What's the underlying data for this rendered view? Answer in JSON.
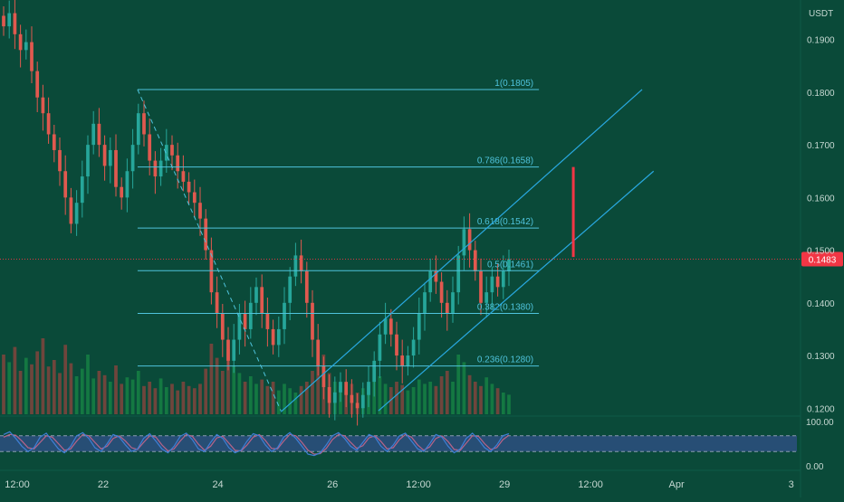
{
  "chart_data": {
    "type": "candlestick",
    "price_unit": "USDT",
    "price_axis": {
      "range": [
        0.1185,
        0.1975
      ],
      "ticks": [
        0.19,
        0.18,
        0.17,
        0.16,
        0.15,
        0.14,
        0.13,
        0.12
      ],
      "tick_labels": [
        "0.1900",
        "0.1800",
        "0.1700",
        "0.1600",
        "0.1500",
        "0.1400",
        "0.1300",
        "0.1200"
      ]
    },
    "time_axis": {
      "range_days": [
        20.2,
        34.1
      ],
      "ticks": [
        {
          "day": 20.5,
          "label": "12:00"
        },
        {
          "day": 22,
          "label": "22"
        },
        {
          "day": 24,
          "label": "24"
        },
        {
          "day": 26,
          "label": "26"
        },
        {
          "day": 27.5,
          "label": "12:00"
        },
        {
          "day": 29,
          "label": "29"
        },
        {
          "day": 30.5,
          "label": "12:00"
        },
        {
          "day": 32,
          "label": "Apr"
        },
        {
          "day": 34,
          "label": "3"
        }
      ]
    },
    "current_price": {
      "value": 0.1483,
      "label": "0.1483"
    },
    "fibonacci_levels": [
      {
        "ratio": 1,
        "value": 0.1805,
        "label": "1(0.1805)"
      },
      {
        "ratio": 0.786,
        "value": 0.1658,
        "label": "0.786(0.1658)"
      },
      {
        "ratio": 0.618,
        "value": 0.1542,
        "label": "0.618(0.1542)"
      },
      {
        "ratio": 0.5,
        "value": 0.1461,
        "label": "0.5(0.1461)"
      },
      {
        "ratio": 0.382,
        "value": 0.138,
        "label": "0.382(0.1380)"
      },
      {
        "ratio": 0.236,
        "value": 0.128,
        "label": "0.236(0.1280)"
      }
    ],
    "fib_range_days": [
      22.6,
      29.6
    ],
    "fib_trend_line": {
      "from": {
        "day": 22.6,
        "price": 0.1805
      },
      "to": {
        "day": 25.1,
        "price": 0.1195
      }
    },
    "channel": {
      "upper": {
        "from": {
          "day": 25.1,
          "price": 0.1193
        },
        "to": {
          "day": 31.4,
          "price": 0.1805
        }
      },
      "lower": {
        "from": {
          "day": 26.8,
          "price": 0.1195
        },
        "to": {
          "day": 31.6,
          "price": 0.165
        }
      }
    },
    "projection": {
      "day": 30.2,
      "from": 0.1487,
      "to": 0.1658
    },
    "candles": [
      {
        "o": 0.1945,
        "c": 0.1925
      },
      {
        "o": 0.1925,
        "c": 0.195
      },
      {
        "o": 0.195,
        "c": 0.191
      },
      {
        "o": 0.191,
        "c": 0.188
      },
      {
        "o": 0.188,
        "c": 0.1895
      },
      {
        "o": 0.1895,
        "c": 0.184
      },
      {
        "o": 0.184,
        "c": 0.179
      },
      {
        "o": 0.179,
        "c": 0.176
      },
      {
        "o": 0.176,
        "c": 0.172
      },
      {
        "o": 0.172,
        "c": 0.169
      },
      {
        "o": 0.169,
        "c": 0.165
      },
      {
        "o": 0.165,
        "c": 0.16
      },
      {
        "o": 0.16,
        "c": 0.155
      },
      {
        "o": 0.155,
        "c": 0.159
      },
      {
        "o": 0.159,
        "c": 0.164
      },
      {
        "o": 0.164,
        "c": 0.17
      },
      {
        "o": 0.17,
        "c": 0.174
      },
      {
        "o": 0.174,
        "c": 0.17
      },
      {
        "o": 0.17,
        "c": 0.166
      },
      {
        "o": 0.166,
        "c": 0.169
      },
      {
        "o": 0.169,
        "c": 0.162
      },
      {
        "o": 0.162,
        "c": 0.16
      },
      {
        "o": 0.16,
        "c": 0.165
      },
      {
        "o": 0.165,
        "c": 0.17
      },
      {
        "o": 0.17,
        "c": 0.176
      },
      {
        "o": 0.176,
        "c": 0.172
      },
      {
        "o": 0.172,
        "c": 0.167
      },
      {
        "o": 0.167,
        "c": 0.164
      },
      {
        "o": 0.164,
        "c": 0.167
      },
      {
        "o": 0.167,
        "c": 0.17
      },
      {
        "o": 0.17,
        "c": 0.168
      },
      {
        "o": 0.168,
        "c": 0.165
      },
      {
        "o": 0.165,
        "c": 0.163
      },
      {
        "o": 0.163,
        "c": 0.161
      },
      {
        "o": 0.161,
        "c": 0.159
      },
      {
        "o": 0.159,
        "c": 0.156
      },
      {
        "o": 0.156,
        "c": 0.15
      },
      {
        "o": 0.15,
        "c": 0.142
      },
      {
        "o": 0.142,
        "c": 0.138
      },
      {
        "o": 0.138,
        "c": 0.133
      },
      {
        "o": 0.133,
        "c": 0.129
      },
      {
        "o": 0.129,
        "c": 0.133
      },
      {
        "o": 0.133,
        "c": 0.138
      },
      {
        "o": 0.138,
        "c": 0.135
      },
      {
        "o": 0.135,
        "c": 0.14
      },
      {
        "o": 0.14,
        "c": 0.143
      },
      {
        "o": 0.143,
        "c": 0.138
      },
      {
        "o": 0.138,
        "c": 0.135
      },
      {
        "o": 0.135,
        "c": 0.132
      },
      {
        "o": 0.132,
        "c": 0.135
      },
      {
        "o": 0.135,
        "c": 0.14
      },
      {
        "o": 0.14,
        "c": 0.145
      },
      {
        "o": 0.145,
        "c": 0.149
      },
      {
        "o": 0.149,
        "c": 0.146
      },
      {
        "o": 0.146,
        "c": 0.14
      },
      {
        "o": 0.14,
        "c": 0.133
      },
      {
        "o": 0.133,
        "c": 0.128
      },
      {
        "o": 0.128,
        "c": 0.124
      },
      {
        "o": 0.124,
        "c": 0.121
      },
      {
        "o": 0.121,
        "c": 0.123
      },
      {
        "o": 0.123,
        "c": 0.125
      },
      {
        "o": 0.125,
        "c": 0.1225
      },
      {
        "o": 0.1225,
        "c": 0.121
      },
      {
        "o": 0.121,
        "c": 0.12
      },
      {
        "o": 0.12,
        "c": 0.1225
      },
      {
        "o": 0.1225,
        "c": 0.125
      },
      {
        "o": 0.125,
        "c": 0.129
      },
      {
        "o": 0.129,
        "c": 0.134
      },
      {
        "o": 0.134,
        "c": 0.137
      },
      {
        "o": 0.137,
        "c": 0.134
      },
      {
        "o": 0.134,
        "c": 0.13
      },
      {
        "o": 0.13,
        "c": 0.128
      },
      {
        "o": 0.128,
        "c": 0.13
      },
      {
        "o": 0.13,
        "c": 0.133
      },
      {
        "o": 0.133,
        "c": 0.138
      },
      {
        "o": 0.138,
        "c": 0.142
      },
      {
        "o": 0.142,
        "c": 0.146
      },
      {
        "o": 0.146,
        "c": 0.144
      },
      {
        "o": 0.144,
        "c": 0.14
      },
      {
        "o": 0.14,
        "c": 0.138
      },
      {
        "o": 0.138,
        "c": 0.142
      },
      {
        "o": 0.142,
        "c": 0.149
      },
      {
        "o": 0.149,
        "c": 0.154
      },
      {
        "o": 0.154,
        "c": 0.15
      },
      {
        "o": 0.15,
        "c": 0.146
      },
      {
        "o": 0.146,
        "c": 0.14
      },
      {
        "o": 0.14,
        "c": 0.142
      },
      {
        "o": 0.142,
        "c": 0.145
      },
      {
        "o": 0.145,
        "c": 0.143
      },
      {
        "o": 0.143,
        "c": 0.146
      },
      {
        "o": 0.146,
        "c": 0.1483
      }
    ],
    "volume": [
      0.55,
      0.48,
      0.62,
      0.4,
      0.52,
      0.46,
      0.58,
      0.7,
      0.44,
      0.5,
      0.38,
      0.64,
      0.47,
      0.35,
      0.42,
      0.55,
      0.33,
      0.4,
      0.36,
      0.3,
      0.45,
      0.28,
      0.34,
      0.32,
      0.4,
      0.26,
      0.3,
      0.24,
      0.33,
      0.25,
      0.28,
      0.22,
      0.3,
      0.26,
      0.24,
      0.28,
      0.42,
      0.65,
      0.52,
      0.4,
      0.6,
      0.45,
      0.38,
      0.3,
      0.35,
      0.28,
      0.32,
      0.26,
      0.3,
      0.22,
      0.28,
      0.24,
      0.2,
      0.26,
      0.3,
      0.4,
      0.48,
      0.55,
      0.38,
      0.3,
      0.26,
      0.22,
      0.28,
      0.2,
      0.24,
      0.26,
      0.3,
      0.35,
      0.28,
      0.25,
      0.3,
      0.27,
      0.22,
      0.25,
      0.32,
      0.28,
      0.3,
      0.26,
      0.35,
      0.4,
      0.3,
      0.55,
      0.48,
      0.36,
      0.3,
      0.26,
      0.34,
      0.28,
      0.24,
      0.2,
      0.18
    ],
    "stochastic": {
      "range": [
        0,
        100
      ],
      "band": [
        20,
        80
      ],
      "tick_labels": [
        "100.00",
        "0.00"
      ],
      "k": [
        85,
        95,
        70,
        40,
        20,
        35,
        75,
        90,
        60,
        30,
        15,
        40,
        80,
        92,
        70,
        35,
        20,
        50,
        85,
        75,
        45,
        20,
        30,
        70,
        88,
        60,
        30,
        15,
        40,
        78,
        90,
        65,
        30,
        20,
        55,
        85,
        70,
        35,
        15,
        25,
        60,
        88,
        80,
        45,
        20,
        35,
        75,
        92,
        70,
        40,
        10,
        5,
        15,
        45,
        80,
        92,
        70,
        40,
        25,
        55,
        85,
        75,
        40,
        20,
        45,
        80,
        90,
        60,
        30,
        20,
        50,
        85,
        75,
        40,
        15,
        30,
        70,
        90,
        65,
        35,
        20,
        45,
        80,
        88
      ],
      "d": [
        75,
        85,
        82,
        60,
        35,
        30,
        55,
        80,
        75,
        50,
        25,
        30,
        60,
        85,
        80,
        55,
        30,
        40,
        70,
        80,
        60,
        35,
        28,
        55,
        80,
        75,
        45,
        22,
        30,
        60,
        85,
        78,
        48,
        25,
        40,
        72,
        78,
        52,
        25,
        22,
        45,
        75,
        85,
        62,
        32,
        30,
        60,
        85,
        80,
        55,
        25,
        10,
        12,
        32,
        65,
        85,
        80,
        55,
        32,
        42,
        72,
        80,
        58,
        30,
        35,
        65,
        85,
        75,
        45,
        25,
        38,
        70,
        80,
        58,
        28,
        25,
        52,
        80,
        78,
        50,
        28,
        35,
        65,
        82
      ]
    }
  },
  "colors": {
    "background": "#0a4a39",
    "up_candle": "#26a69a",
    "down_candle": "#e0594f",
    "fib_line": "#4fc3dc",
    "channel": "#29a8e0",
    "projection": "#f23645",
    "price_tag": "#f23645",
    "volume_up": "#1e9e4a",
    "volume_down": "#c2413f",
    "osc_band": "#2a4f7c",
    "osc_k": "#3f7fd6",
    "osc_d": "#b8648a",
    "axis_text": "#c6d8d2"
  }
}
